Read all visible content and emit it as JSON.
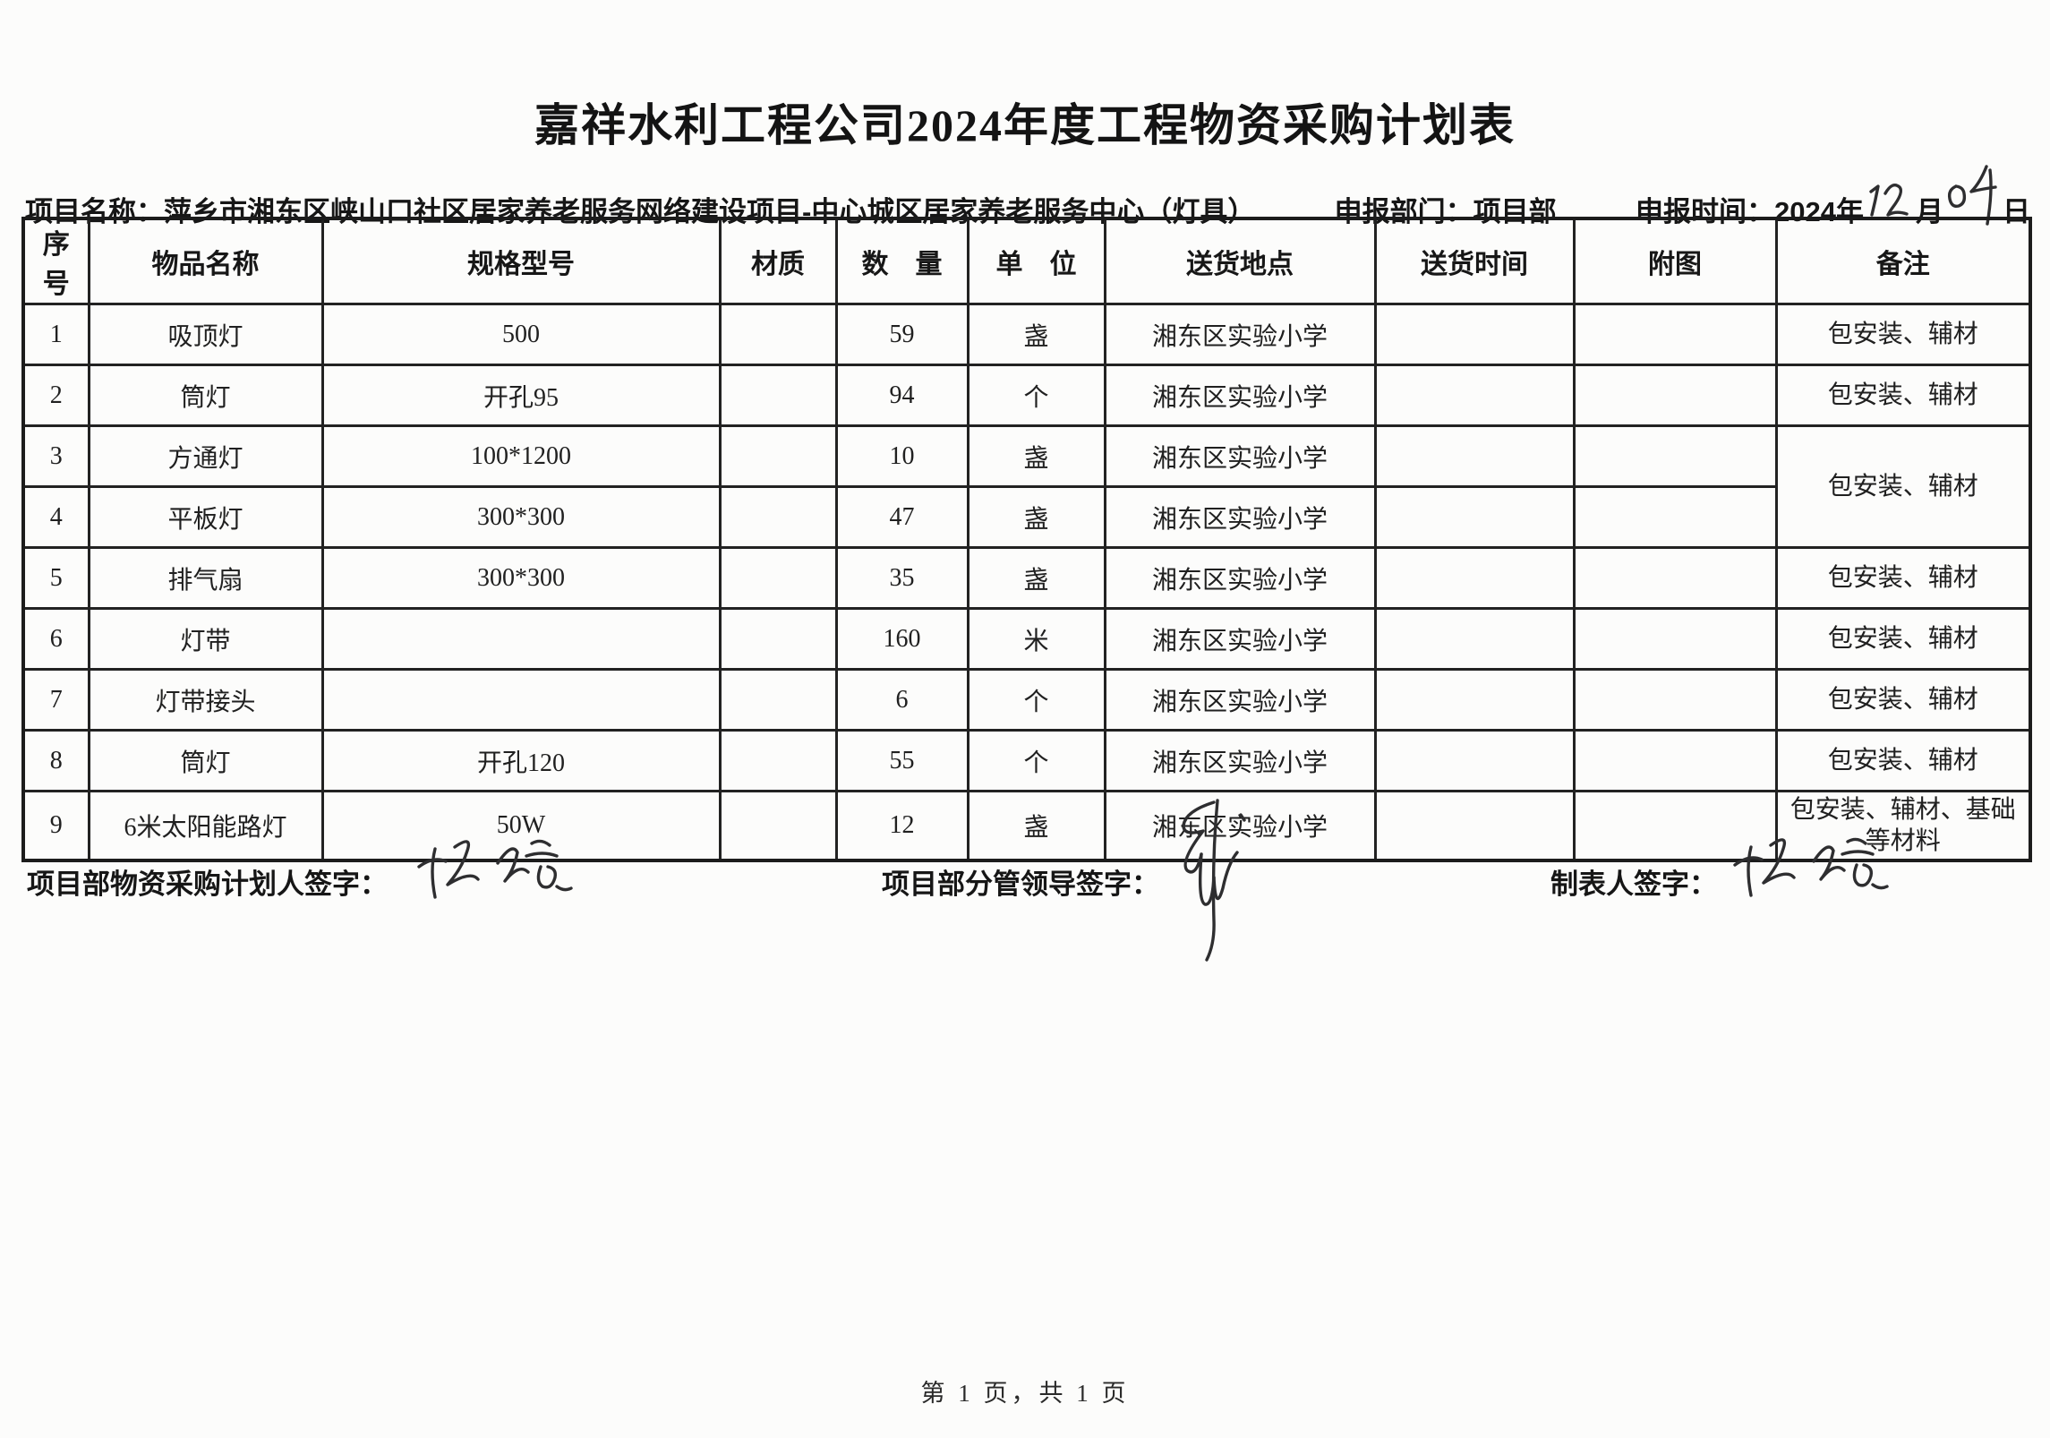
{
  "document": {
    "title": "嘉祥水利工程公司2024年度工程物资采购计划表",
    "page_footer": "第 1 页，共 1 页"
  },
  "meta": {
    "project": {
      "label": "项目名称：",
      "value": "萍乡市湘东区峡山口社区居家养老服务网络建设项目-中心城区居家养老服务中心（灯具）"
    },
    "department": {
      "label": "申报部门：",
      "value": "项目部"
    },
    "report_date": {
      "label": "申报时间：",
      "year": "2024年",
      "month_handwritten": "12",
      "month_suffix": "月",
      "day_handwritten": "04",
      "day_suffix": "日"
    }
  },
  "table": {
    "headers": [
      "序号",
      "物品名称",
      "规格型号",
      "材质",
      "数　量",
      "单　位",
      "送货地点",
      "送货时间",
      "附图",
      "备注"
    ],
    "rows": [
      {
        "no": "1",
        "name": "吸顶灯",
        "spec": "500",
        "material": "",
        "qty": "59",
        "unit": "盏",
        "location": "湘东区实验小学",
        "time": "",
        "attachment": "",
        "remark": "包安装、辅材"
      },
      {
        "no": "2",
        "name": "筒灯",
        "spec": "开孔95",
        "material": "",
        "qty": "94",
        "unit": "个",
        "location": "湘东区实验小学",
        "time": "",
        "attachment": "",
        "remark": "包安装、辅材"
      },
      {
        "no": "3",
        "name": "方通灯",
        "spec": "100*1200",
        "material": "",
        "qty": "10",
        "unit": "盏",
        "location": "湘东区实验小学",
        "time": "",
        "attachment": "",
        "remark": "包安装、辅材",
        "remark_rowspan": 2
      },
      {
        "no": "4",
        "name": "平板灯",
        "spec": "300*300",
        "material": "",
        "qty": "47",
        "unit": "盏",
        "location": "湘东区实验小学",
        "time": "",
        "attachment": "",
        "remark_merged": true
      },
      {
        "no": "5",
        "name": "排气扇",
        "spec": "300*300",
        "material": "",
        "qty": "35",
        "unit": "盏",
        "location": "湘东区实验小学",
        "time": "",
        "attachment": "",
        "remark": "包安装、辅材"
      },
      {
        "no": "6",
        "name": "灯带",
        "spec": "",
        "material": "",
        "qty": "160",
        "unit": "米",
        "location": "湘东区实验小学",
        "time": "",
        "attachment": "",
        "remark": "包安装、辅材"
      },
      {
        "no": "7",
        "name": "灯带接头",
        "spec": "",
        "material": "",
        "qty": "6",
        "unit": "个",
        "location": "湘东区实验小学",
        "time": "",
        "attachment": "",
        "remark": "包安装、辅材"
      },
      {
        "no": "8",
        "name": "筒灯",
        "spec": "开孔120",
        "material": "",
        "qty": "55",
        "unit": "个",
        "location": "湘东区实验小学",
        "time": "",
        "attachment": "",
        "remark": "包安装、辅材"
      },
      {
        "no": "9",
        "name": "6米太阳能路灯",
        "spec": "50W",
        "material": "",
        "qty": "12",
        "unit": "盏",
        "location": "湘东区实验小学",
        "time": "",
        "attachment": "",
        "remark": "包安装、辅材、基础等材料"
      }
    ]
  },
  "signatures": {
    "planner": {
      "label": "项目部物资采购计划人签字："
    },
    "leader": {
      "label": "项目部分管领导签字："
    },
    "preparer": {
      "label": "制表人签字："
    }
  }
}
